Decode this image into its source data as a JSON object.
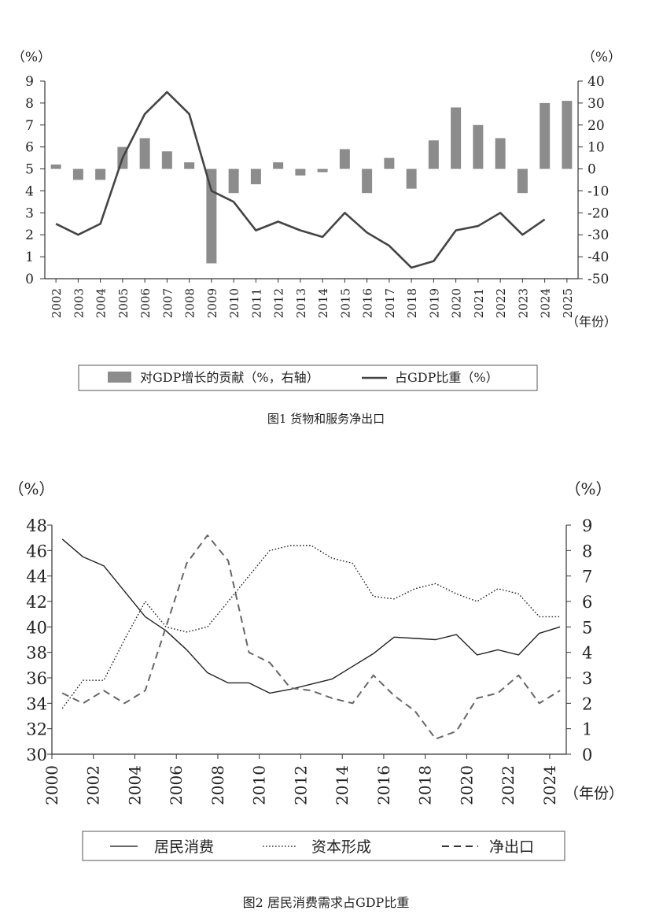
{
  "chart_data": [
    {
      "type": "bar+line",
      "title": "图1 货物和服务净出口",
      "left_unit": "（%）",
      "right_unit": "（%）",
      "x_unit": "（年份）",
      "years": [
        "2002",
        "2003",
        "2004",
        "2005",
        "2006",
        "2007",
        "2008",
        "2009",
        "2010",
        "2011",
        "2012",
        "2013",
        "2014",
        "2015",
        "2016",
        "2017",
        "2018",
        "2019",
        "2020",
        "2021",
        "2022",
        "2023",
        "2024",
        "2025"
      ],
      "left_axis": {
        "range": [
          0,
          9
        ],
        "ticks": [
          "0",
          "1",
          "2",
          "3",
          "4",
          "5",
          "6",
          "7",
          "8",
          "9"
        ]
      },
      "right_axis": {
        "range": [
          -50,
          40
        ],
        "ticks": [
          "-50",
          "-40",
          "-30",
          "-20",
          "-10",
          "0",
          "10",
          "20",
          "30",
          "40"
        ]
      },
      "bar_series": {
        "name": "对GDP增长的贡献（%，右轴）",
        "axis": "right",
        "values": [
          2,
          -5,
          -5,
          10,
          14,
          8,
          3,
          -43,
          -11,
          -7,
          3,
          -3,
          -1.5,
          9,
          -11,
          5,
          -9,
          13,
          28,
          20,
          14,
          -11,
          30,
          31
        ]
      },
      "line_series": {
        "name": "占GDP比重（%）",
        "axis": "left",
        "values": [
          2.5,
          2.0,
          2.5,
          5.5,
          7.5,
          8.5,
          7.5,
          4.0,
          3.5,
          2.2,
          2.6,
          2.2,
          1.9,
          3.0,
          2.1,
          1.5,
          0.5,
          0.8,
          2.2,
          2.4,
          3.0,
          2.0,
          2.7
        ]
      },
      "legend": [
        "对GDP增长的贡献（%，右轴）",
        "占GDP比重（%）"
      ],
      "legend_position": "bottom"
    },
    {
      "type": "line",
      "title": "图2 居民消费需求占GDP比重",
      "left_unit": "（%）",
      "right_unit": "（%）",
      "x_unit": "（年份）",
      "x_ticks": [
        "2000",
        "2002",
        "2004",
        "2006",
        "2008",
        "2010",
        "2012",
        "2014",
        "2016",
        "2018",
        "2020",
        "2022",
        "2024"
      ],
      "x_range": [
        2000,
        2024.8
      ],
      "left_axis": {
        "range": [
          30,
          48
        ],
        "ticks": [
          "30",
          "32",
          "34",
          "36",
          "38",
          "40",
          "42",
          "44",
          "46",
          "48"
        ]
      },
      "right_axis": {
        "range": [
          0,
          9
        ],
        "ticks": [
          "0",
          "1",
          "2",
          "3",
          "4",
          "5",
          "6",
          "7",
          "8",
          "9"
        ]
      },
      "series": [
        {
          "name": "居民消费",
          "axis": "left",
          "style": "solid",
          "x": [
            2000.5,
            2001.5,
            2002.5,
            2003.5,
            2004.5,
            2005.5,
            2006.5,
            2007.5,
            2008.5,
            2009.5,
            2010.5,
            2011.5,
            2012.5,
            2013.5,
            2014.5,
            2015.5,
            2016.5,
            2017.5,
            2018.5,
            2019.5,
            2020.5,
            2021.5,
            2022.5,
            2023.5,
            2024.5
          ],
          "values": [
            46.9,
            45.5,
            44.8,
            42.8,
            40.8,
            39.7,
            38.2,
            36.4,
            35.6,
            35.6,
            34.8,
            35.1,
            35.5,
            35.9,
            36.9,
            37.9,
            39.2,
            39.1,
            39.0,
            39.4,
            37.8,
            38.2,
            37.8,
            39.5,
            40.0
          ]
        },
        {
          "name": "资本形成",
          "axis": "right",
          "style": "dotted",
          "x": [
            2000.5,
            2001.5,
            2002.5,
            2003.5,
            2004.5,
            2005.5,
            2006.5,
            2007.5,
            2008.5,
            2009.5,
            2010.5,
            2011.5,
            2012.5,
            2013.5,
            2014.5,
            2015.5,
            2016.5,
            2017.5,
            2018.5,
            2019.5,
            2020.5,
            2021.5,
            2022.5,
            2023.5,
            2024.5
          ],
          "values": [
            1.8,
            2.9,
            2.9,
            4.5,
            6.0,
            5.0,
            4.8,
            5.0,
            6.0,
            7.0,
            8.0,
            8.2,
            8.2,
            7.7,
            7.5,
            6.2,
            6.1,
            6.5,
            6.7,
            6.3,
            6.0,
            6.5,
            6.3,
            5.4,
            5.4
          ]
        },
        {
          "name": "净出口",
          "axis": "right",
          "style": "dashed",
          "x": [
            2000.5,
            2001.5,
            2002.5,
            2003.5,
            2004.5,
            2005.5,
            2006.5,
            2007.5,
            2008.5,
            2009.5,
            2010.5,
            2011.5,
            2012.5,
            2013.5,
            2014.5,
            2015.5,
            2016.5,
            2017.5,
            2018.5,
            2019.5,
            2020.5,
            2021.5,
            2022.5,
            2023.5,
            2024.5
          ],
          "values": [
            2.4,
            2.0,
            2.5,
            2.0,
            2.5,
            5.0,
            7.5,
            8.6,
            7.6,
            4.0,
            3.6,
            2.6,
            2.5,
            2.2,
            2.0,
            3.1,
            2.3,
            1.7,
            0.6,
            0.9,
            2.2,
            2.4,
            3.1,
            2.0,
            2.5
          ]
        }
      ],
      "legend": [
        "居民消费",
        "资本形成",
        "净出口"
      ],
      "legend_position": "bottom"
    }
  ]
}
